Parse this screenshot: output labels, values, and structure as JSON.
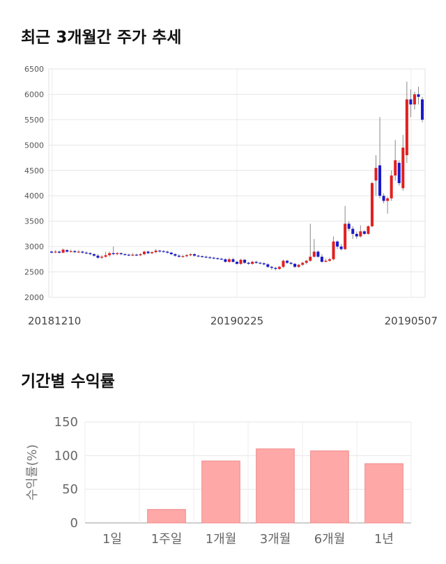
{
  "sections": {
    "price_title": "최근 3개월간 주가 추세",
    "return_title": "기간별 수익률"
  },
  "chart_data": [
    {
      "type": "candlestick",
      "ylim": [
        2000,
        6500
      ],
      "y_ticks": [
        "6500",
        "6000",
        "5500",
        "5000",
        "4500",
        "4000",
        "3500",
        "3000",
        "2500",
        "2000"
      ],
      "x_tick_labels": [
        "20181210",
        "20190225",
        "20190507"
      ],
      "grid": true,
      "colors": {
        "up": "#e02020",
        "down": "#1a1acc",
        "wick": "#888888"
      },
      "series": [
        [
          2900,
          2880,
          2920,
          2870
        ],
        [
          2890,
          2900,
          2930,
          2870
        ],
        [
          2900,
          2880,
          2920,
          2860
        ],
        [
          2880,
          2940,
          2960,
          2870
        ],
        [
          2930,
          2900,
          2950,
          2880
        ],
        [
          2900,
          2910,
          2940,
          2880
        ],
        [
          2910,
          2890,
          2930,
          2870
        ],
        [
          2890,
          2900,
          2930,
          2870
        ],
        [
          2900,
          2880,
          2920,
          2860
        ],
        [
          2880,
          2870,
          2910,
          2850
        ],
        [
          2870,
          2850,
          2890,
          2830
        ],
        [
          2850,
          2820,
          2870,
          2800
        ],
        [
          2820,
          2780,
          2850,
          2760
        ],
        [
          2780,
          2800,
          2830,
          2760
        ],
        [
          2800,
          2830,
          2900,
          2780
        ],
        [
          2830,
          2870,
          2900,
          2800
        ],
        [
          2870,
          2850,
          3000,
          2830
        ],
        [
          2850,
          2870,
          2890,
          2830
        ],
        [
          2870,
          2850,
          2880,
          2830
        ],
        [
          2850,
          2840,
          2870,
          2820
        ],
        [
          2840,
          2830,
          2860,
          2810
        ],
        [
          2830,
          2840,
          2870,
          2810
        ],
        [
          2840,
          2830,
          2860,
          2810
        ],
        [
          2830,
          2850,
          2870,
          2810
        ],
        [
          2850,
          2900,
          2920,
          2830
        ],
        [
          2900,
          2870,
          2920,
          2850
        ],
        [
          2870,
          2890,
          2910,
          2850
        ],
        [
          2890,
          2920,
          2950,
          2870
        ],
        [
          2920,
          2910,
          2940,
          2880
        ],
        [
          2910,
          2900,
          2930,
          2880
        ],
        [
          2900,
          2880,
          2920,
          2860
        ],
        [
          2880,
          2850,
          2900,
          2830
        ],
        [
          2850,
          2820,
          2870,
          2800
        ],
        [
          2820,
          2800,
          2850,
          2780
        ],
        [
          2800,
          2810,
          2840,
          2780
        ],
        [
          2810,
          2830,
          2850,
          2790
        ],
        [
          2830,
          2850,
          2870,
          2810
        ],
        [
          2850,
          2820,
          2870,
          2800
        ],
        [
          2820,
          2810,
          2840,
          2790
        ],
        [
          2810,
          2800,
          2830,
          2780
        ],
        [
          2800,
          2790,
          2820,
          2770
        ],
        [
          2790,
          2780,
          2810,
          2760
        ],
        [
          2780,
          2770,
          2800,
          2750
        ],
        [
          2770,
          2760,
          2790,
          2740
        ],
        [
          2760,
          2750,
          2780,
          2730
        ],
        [
          2750,
          2700,
          2770,
          2680
        ],
        [
          2700,
          2750,
          2780,
          2680
        ],
        [
          2750,
          2700,
          2780,
          2680
        ],
        [
          2700,
          2660,
          2720,
          2640
        ],
        [
          2660,
          2740,
          2760,
          2640
        ],
        [
          2740,
          2680,
          2760,
          2660
        ],
        [
          2680,
          2660,
          2700,
          2640
        ],
        [
          2660,
          2700,
          2720,
          2640
        ],
        [
          2700,
          2680,
          2720,
          2660
        ],
        [
          2680,
          2670,
          2700,
          2650
        ],
        [
          2670,
          2650,
          2690,
          2630
        ],
        [
          2650,
          2600,
          2670,
          2580
        ],
        [
          2600,
          2580,
          2620,
          2540
        ],
        [
          2580,
          2560,
          2600,
          2530
        ],
        [
          2560,
          2600,
          2620,
          2540
        ],
        [
          2600,
          2720,
          2740,
          2580
        ],
        [
          2720,
          2680,
          2740,
          2660
        ],
        [
          2680,
          2660,
          2700,
          2640
        ],
        [
          2660,
          2600,
          2680,
          2580
        ],
        [
          2600,
          2640,
          2660,
          2580
        ],
        [
          2640,
          2680,
          2700,
          2620
        ],
        [
          2680,
          2720,
          2740,
          2650
        ],
        [
          2720,
          2800,
          3450,
          2700
        ],
        [
          2800,
          2900,
          3150,
          2780
        ],
        [
          2900,
          2800,
          2920,
          2780
        ],
        [
          2800,
          2700,
          2850,
          2680
        ],
        [
          2700,
          2720,
          2760,
          2690
        ],
        [
          2720,
          2750,
          2780,
          2700
        ],
        [
          2750,
          3100,
          3200,
          2730
        ],
        [
          3100,
          3000,
          3120,
          2950
        ],
        [
          3000,
          2950,
          3050,
          2920
        ],
        [
          2950,
          3450,
          3800,
          2930
        ],
        [
          3450,
          3350,
          3500,
          3300
        ],
        [
          3350,
          3250,
          3400,
          3150
        ],
        [
          3250,
          3200,
          3300,
          3150
        ],
        [
          3200,
          3300,
          3420,
          3180
        ],
        [
          3300,
          3250,
          3320,
          3230
        ],
        [
          3250,
          3400,
          3420,
          3230
        ],
        [
          3400,
          4250,
          4280,
          3380
        ],
        [
          4300,
          4550,
          4800,
          4000
        ],
        [
          4600,
          4000,
          5550,
          3950
        ],
        [
          4000,
          3900,
          4050,
          3850
        ],
        [
          3900,
          3950,
          3980,
          3650
        ],
        [
          3950,
          4400,
          4500,
          3900
        ],
        [
          4400,
          4700,
          5100,
          4300
        ],
        [
          4650,
          4250,
          4700,
          4200
        ],
        [
          4150,
          4950,
          5200,
          4100
        ],
        [
          4800,
          5900,
          6250,
          4650
        ],
        [
          5900,
          5800,
          6100,
          5550
        ],
        [
          5800,
          6000,
          6050,
          5700
        ],
        [
          6000,
          5950,
          6150,
          5800
        ],
        [
          5900,
          5500,
          5950,
          5450
        ]
      ]
    },
    {
      "type": "bar",
      "categories": [
        "1일",
        "1주일",
        "1개월",
        "3개월",
        "6개월",
        "1년"
      ],
      "values": [
        0,
        20,
        92,
        110,
        107,
        88
      ],
      "ylim": [
        0,
        150
      ],
      "y_ticks": [
        "0",
        "50",
        "100",
        "150"
      ],
      "ylabel": "수익률(%)",
      "colors": {
        "bar": "#ffa8a8",
        "edge": "#f08888"
      },
      "grid": true
    }
  ]
}
